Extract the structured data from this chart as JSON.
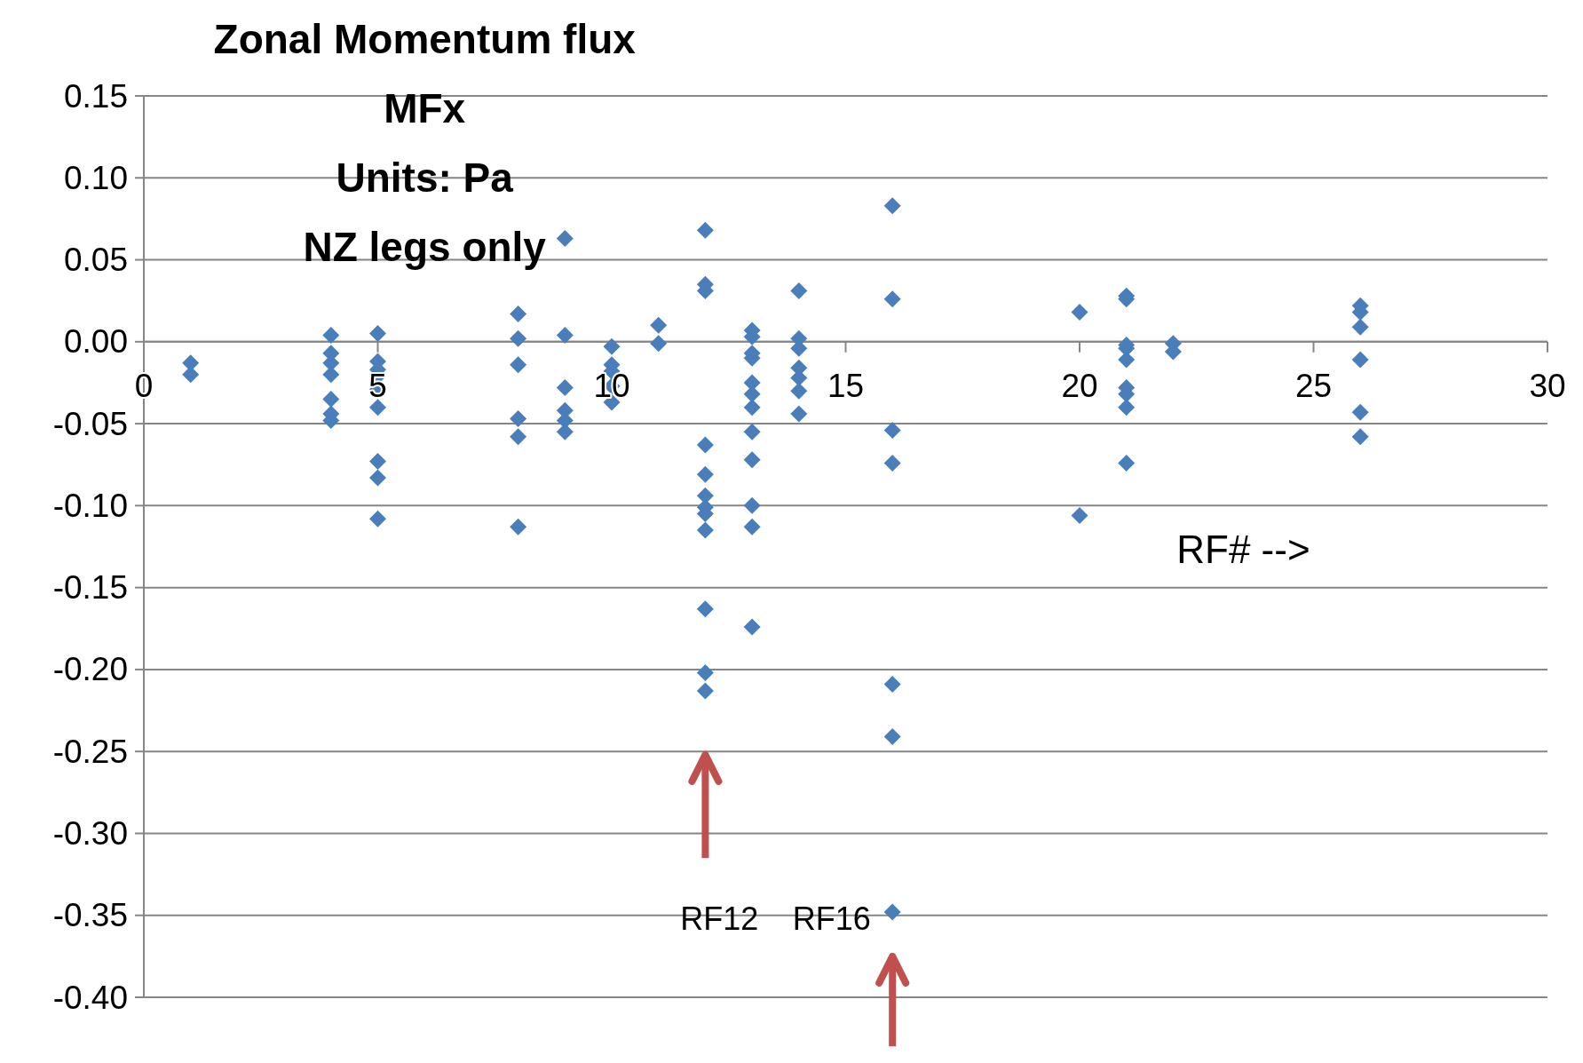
{
  "chart_data": {
    "type": "scatter",
    "title": "Zonal Momentum flux",
    "subtitle": "MFx\nUnits: Pa\nNZ legs only",
    "xlabel": "RF# -->",
    "series": [
      {
        "color": "#4a7ebb",
        "x": [
          1,
          1,
          4,
          4,
          4,
          4,
          4,
          4,
          4,
          5,
          5,
          5,
          5,
          5,
          5,
          5,
          5,
          5,
          8,
          8,
          8,
          8,
          8,
          8,
          9,
          9,
          9,
          9,
          9,
          9,
          10,
          10,
          10,
          10,
          10,
          11,
          11,
          12,
          12,
          12,
          12,
          12,
          12,
          12,
          12,
          12,
          12,
          12,
          12,
          13,
          13,
          13,
          13,
          13,
          13,
          13,
          13,
          13,
          13,
          13,
          13,
          14,
          14,
          14,
          14,
          14,
          14,
          14,
          16,
          16,
          16,
          16,
          16,
          16,
          16,
          20,
          20,
          21,
          21,
          21,
          21,
          21,
          21,
          21,
          21,
          21,
          22,
          22,
          26,
          26,
          26,
          26,
          26,
          26
        ],
        "values": [
          -0.013,
          -0.02,
          0.004,
          -0.007,
          -0.013,
          -0.02,
          -0.035,
          -0.044,
          -0.048,
          0.005,
          -0.012,
          -0.017,
          -0.021,
          -0.029,
          -0.04,
          -0.073,
          -0.083,
          -0.108,
          0.017,
          0.002,
          -0.014,
          -0.047,
          -0.058,
          -0.113,
          0.063,
          0.004,
          -0.028,
          -0.042,
          -0.048,
          -0.055,
          -0.003,
          -0.014,
          -0.018,
          -0.027,
          -0.037,
          0.01,
          -0.001,
          0.068,
          0.035,
          0.031,
          -0.063,
          -0.081,
          -0.094,
          -0.101,
          -0.105,
          -0.115,
          -0.163,
          -0.202,
          -0.213,
          0.007,
          0.003,
          -0.007,
          -0.01,
          -0.025,
          -0.032,
          -0.04,
          -0.055,
          -0.072,
          -0.1,
          -0.113,
          -0.174,
          0.031,
          0.002,
          -0.004,
          -0.016,
          -0.022,
          -0.03,
          -0.044,
          0.083,
          0.026,
          -0.054,
          -0.074,
          -0.209,
          -0.241,
          -0.348,
          0.018,
          -0.106,
          0.028,
          0.026,
          -0.002,
          -0.004,
          -0.011,
          -0.028,
          -0.032,
          -0.04,
          -0.074,
          -0.001,
          -0.006,
          0.022,
          0.018,
          0.009,
          -0.011,
          -0.043,
          -0.058
        ]
      }
    ],
    "marker": "diamond",
    "grid": "y",
    "xlim": [
      0,
      30
    ],
    "xticks": [
      0,
      5,
      10,
      15,
      20,
      25,
      30
    ],
    "ylim": [
      -0.4,
      0.15
    ],
    "yticks": [
      {
        "value": 0.15,
        "label": "0.15"
      },
      {
        "value": 0.1,
        "label": "0.10"
      },
      {
        "value": 0.05,
        "label": "0.05"
      },
      {
        "value": 0,
        "label": "0.00"
      },
      {
        "value": -0.05,
        "label": "-0.05"
      },
      {
        "value": -0.1,
        "label": "-0.10"
      },
      {
        "value": -0.15,
        "label": "-0.15"
      },
      {
        "value": -0.2,
        "label": "-0.20"
      },
      {
        "value": -0.25,
        "label": "-0.25"
      },
      {
        "value": -0.3,
        "label": "-0.30"
      },
      {
        "value": -0.35,
        "label": "-0.35"
      },
      {
        "value": -0.4,
        "label": "-0.40"
      }
    ],
    "annotations": [
      "RF12",
      "RF16"
    ]
  }
}
